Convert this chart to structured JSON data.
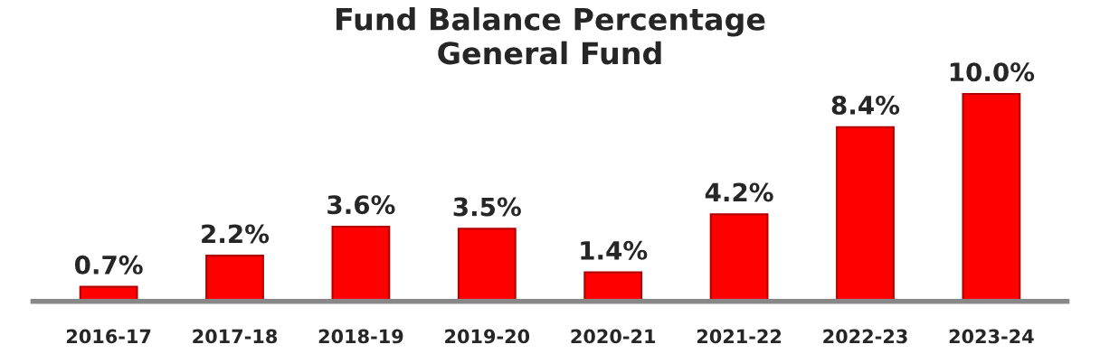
{
  "chart_data": {
    "type": "bar",
    "title": "Fund Balance Percentage\nGeneral Fund",
    "categories": [
      "2016-17",
      "2017-18",
      "2018-19",
      "2019-20",
      "2020-21",
      "2021-22",
      "2022-23",
      "2023-24"
    ],
    "values": [
      0.7,
      2.2,
      3.6,
      3.5,
      1.4,
      4.2,
      8.4,
      10.0
    ],
    "value_labels": [
      "0.7%",
      "2.2%",
      "3.6%",
      "3.5%",
      "1.4%",
      "4.2%",
      "8.4%",
      "10.0%"
    ],
    "color": "#ff0000",
    "grid": false,
    "legend": false
  }
}
